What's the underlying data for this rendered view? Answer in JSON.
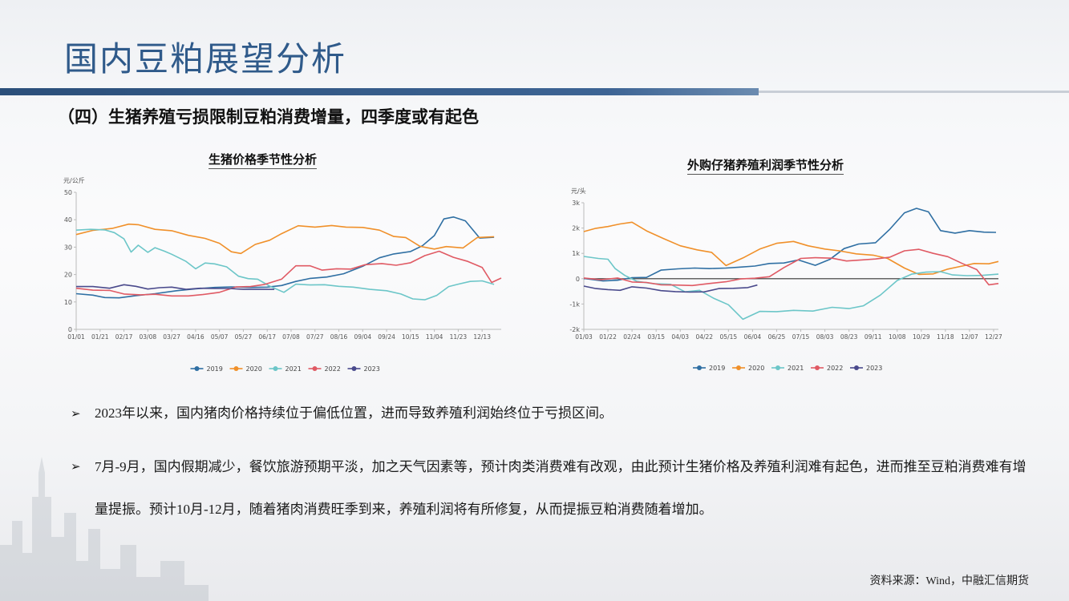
{
  "page": {
    "title": "国内豆粕展望分析",
    "subtitle": "（四）生猪养殖亏损限制豆粕消费增量，四季度或有起色",
    "source": "资料来源：Wind，中融汇信期货"
  },
  "bullets": [
    {
      "text": "2023年以来，国内猪肉价格持续位于偏低位置，进而导致养殖利润始终位于亏损区间。"
    },
    {
      "text": "7月-9月，国内假期减少，餐饮旅游预期平淡，加之天气因素等，预计肉类消费难有改观，由此预计生猪价格及养殖利润难有起色，进而推至豆粕消费难有增量提振。预计10月-12月，随着猪肉消费旺季到来，养殖利润将有所修复，从而提振豆粕消费随着增加。"
    }
  ],
  "colors": {
    "2019": "#2f6fa3",
    "2020": "#f0902a",
    "2021": "#6cc6c8",
    "2022": "#e05a64",
    "2023": "#4a4a8c"
  },
  "chart_data": [
    {
      "type": "line",
      "title": "生猪价格季节性分析",
      "ylabel": "元/公斤",
      "ylim": [
        0,
        50
      ],
      "yticks": [
        0,
        10,
        20,
        30,
        40,
        50
      ],
      "xticks": [
        "01/01",
        "01/21",
        "02/17",
        "03/08",
        "03/27",
        "04/16",
        "05/07",
        "05/27",
        "06/17",
        "07/08",
        "07/27",
        "08/16",
        "09/04",
        "09/24",
        "10/15",
        "11/04",
        "11/23",
        "12/13"
      ],
      "x_range": [
        0,
        17.8
      ],
      "legend": "bottom",
      "grid": false,
      "series": [
        {
          "name": "2019",
          "x": [
            0,
            0.7,
            1.2,
            1.8,
            2.5,
            3.3,
            4.2,
            5,
            5.8,
            6.5,
            7.3,
            8,
            8.6,
            9.2,
            9.8,
            10.5,
            11.2,
            12,
            12.7,
            13.3,
            14,
            14.5,
            15,
            15.4,
            15.8,
            16.3,
            16.9,
            17.5
          ],
          "values": [
            13,
            12.5,
            11.6,
            11.5,
            12.3,
            13,
            14.1,
            14.8,
            15.3,
            15.5,
            15.3,
            15.4,
            16,
            17.5,
            18.6,
            19.1,
            20.3,
            23,
            26.1,
            27.5,
            28.4,
            30.5,
            34.2,
            40.3,
            41,
            39.6,
            33.3,
            33.6
          ]
        },
        {
          "name": "2020",
          "x": [
            0,
            0.7,
            1.5,
            2.2,
            2.6,
            3.3,
            4,
            4.7,
            5.4,
            6,
            6.5,
            6.9,
            7.5,
            8.1,
            8.6,
            9.3,
            10,
            10.7,
            11.3,
            12,
            12.7,
            13.3,
            13.8,
            14.4,
            15,
            15.5,
            16.2,
            16.8,
            17.5
          ],
          "values": [
            34.6,
            36.1,
            36.8,
            38.4,
            38.2,
            36.5,
            36,
            34.3,
            33.2,
            31.4,
            28.3,
            27.7,
            31,
            32.5,
            34.9,
            37.8,
            37.3,
            37.9,
            37.3,
            37.2,
            36.2,
            33.9,
            33.5,
            30.3,
            29.3,
            30.2,
            29.7,
            33.5,
            33.8
          ]
        },
        {
          "name": "2021",
          "x": [
            0,
            0.6,
            1.2,
            1.6,
            2,
            2.3,
            2.6,
            3,
            3.3,
            3.7,
            4,
            4.3,
            4.6,
            5,
            5.4,
            5.8,
            6.3,
            6.8,
            7.2,
            7.6,
            8.1,
            8.7,
            9.2,
            9.8,
            10.4,
            11,
            11.6,
            12.3,
            13,
            13.6,
            14.1,
            14.6,
            15.1,
            15.6,
            16,
            16.5,
            17,
            17.5
          ],
          "values": [
            36.2,
            36.5,
            36.3,
            35.3,
            33,
            28.2,
            30.7,
            28.1,
            29.8,
            28.5,
            27.4,
            26.1,
            24.8,
            22.1,
            24.2,
            23.9,
            22.8,
            19.4,
            18.5,
            18.3,
            15.8,
            13.5,
            16.5,
            16.2,
            16.3,
            15.7,
            15.4,
            14.6,
            14.1,
            12.9,
            11.1,
            10.8,
            12.4,
            15.6,
            16.5,
            17.5,
            17.7,
            16.4
          ]
        },
        {
          "name": "2022",
          "x": [
            0,
            0.7,
            1.4,
            2,
            2.7,
            3.3,
            4,
            4.7,
            5.3,
            6,
            6.7,
            7.3,
            7.9,
            8.6,
            9.2,
            9.8,
            10.3,
            10.9,
            11.5,
            12.1,
            12.8,
            13.4,
            14,
            14.6,
            15.2,
            15.8,
            16.4,
            17,
            17.4,
            17.8
          ],
          "values": [
            15,
            14.3,
            14.2,
            12.9,
            12.6,
            12.8,
            12.2,
            12.2,
            12.7,
            13.5,
            15.5,
            15.6,
            16.4,
            18.3,
            23.2,
            23.2,
            21.6,
            22.1,
            22,
            23.6,
            24,
            23.4,
            24.3,
            26.9,
            28.5,
            26.3,
            24.8,
            22.6,
            17.1,
            18.7
          ]
        },
        {
          "name": "2023",
          "x": [
            0,
            0.7,
            1.4,
            2,
            2.5,
            3,
            3.5,
            4,
            4.6,
            5.2,
            5.8,
            6.4,
            7,
            7.7,
            8.3
          ],
          "values": [
            15.6,
            15.6,
            15,
            16.3,
            15.7,
            14.7,
            15.2,
            15.4,
            14.6,
            15,
            14.9,
            14.9,
            14.6,
            14.6,
            14.6
          ]
        }
      ]
    },
    {
      "type": "line",
      "title": "外购仔猪养殖利润季节性分析",
      "ylabel": "元/头",
      "ylim": [
        -2000,
        3000
      ],
      "yticks": [
        -2000,
        -1000,
        0,
        1000,
        2000,
        3000
      ],
      "ytick_labels": [
        "-2k",
        "-1k",
        "0",
        "1k",
        "2k",
        "3k"
      ],
      "xticks": [
        "01/03",
        "01/22",
        "02/24",
        "03/15",
        "04/03",
        "04/22",
        "05/15",
        "06/04",
        "06/25",
        "07/15",
        "08/03",
        "08/23",
        "09/11",
        "10/08",
        "10/29",
        "11/18",
        "12/07",
        "12/27"
      ],
      "x_range": [
        0,
        17.2
      ],
      "legend": "bottom",
      "grid": false,
      "series": [
        {
          "name": "2019",
          "x": [
            0,
            0.8,
            1.4,
            2,
            2.6,
            3.2,
            3.9,
            4.6,
            5.2,
            5.9,
            6.5,
            7.1,
            7.7,
            8.3,
            8.9,
            9.6,
            10.2,
            10.8,
            11.4,
            12.1,
            12.7,
            13.3,
            13.8,
            14.3,
            14.8,
            15.4,
            16,
            16.6,
            17.1
          ],
          "values": [
            10,
            -90,
            -60,
            40,
            50,
            340,
            390,
            420,
            400,
            420,
            460,
            500,
            600,
            620,
            740,
            530,
            760,
            1190,
            1370,
            1420,
            1960,
            2600,
            2780,
            2640,
            1900,
            1800,
            1900,
            1840,
            1830
          ]
        },
        {
          "name": "2020",
          "x": [
            0,
            0.5,
            1,
            1.5,
            2,
            2.6,
            3.3,
            4,
            4.7,
            5.3,
            5.9,
            6.6,
            7.3,
            8,
            8.7,
            9.3,
            10,
            10.6,
            11.3,
            12,
            12.6,
            13.3,
            13.9,
            14.5,
            15.1,
            15.6,
            16.2,
            16.8,
            17.2
          ],
          "values": [
            1860,
            1990,
            2060,
            2160,
            2230,
            1890,
            1590,
            1300,
            1140,
            1040,
            520,
            820,
            1170,
            1400,
            1470,
            1300,
            1170,
            1100,
            980,
            930,
            800,
            420,
            170,
            190,
            380,
            480,
            600,
            590,
            680
          ]
        },
        {
          "name": "2021",
          "x": [
            0,
            0.6,
            1,
            1.3,
            1.7,
            2.2,
            2.9,
            3.6,
            4.2,
            4.8,
            5.4,
            6,
            6.6,
            7.3,
            8,
            8.7,
            9.5,
            10.3,
            11,
            11.6,
            12.3,
            13,
            13.6,
            14.2,
            14.8,
            15.3,
            15.9,
            16.5,
            17.2
          ],
          "values": [
            880,
            800,
            770,
            400,
            130,
            -100,
            -200,
            -220,
            -520,
            -460,
            -780,
            -1030,
            -1600,
            -1290,
            -1300,
            -1250,
            -1280,
            -1130,
            -1180,
            -1070,
            -650,
            -70,
            180,
            260,
            280,
            150,
            120,
            130,
            180
          ]
        },
        {
          "name": "2022",
          "x": [
            0,
            0.7,
            1.4,
            2,
            2.6,
            3.2,
            3.8,
            4.5,
            5.2,
            5.9,
            6.5,
            7.1,
            7.7,
            8.3,
            9,
            9.6,
            10.3,
            10.9,
            11.5,
            12.1,
            12.7,
            13.3,
            13.9,
            14.5,
            15.1,
            15.7,
            16.3,
            16.8,
            17.2
          ],
          "values": [
            30,
            -40,
            30,
            -130,
            -150,
            -240,
            -250,
            -270,
            -190,
            -120,
            -10,
            20,
            80,
            440,
            800,
            830,
            810,
            700,
            740,
            780,
            850,
            1100,
            1160,
            1000,
            870,
            600,
            360,
            -240,
            -190
          ]
        },
        {
          "name": "2023",
          "x": [
            0,
            0.5,
            1,
            1.5,
            2,
            2.6,
            3.2,
            3.8,
            4.4,
            5,
            5.6,
            6.2,
            6.8,
            7.2
          ],
          "values": [
            -290,
            -390,
            -430,
            -460,
            -320,
            -370,
            -470,
            -510,
            -530,
            -520,
            -390,
            -380,
            -350,
            -250
          ]
        }
      ]
    }
  ]
}
